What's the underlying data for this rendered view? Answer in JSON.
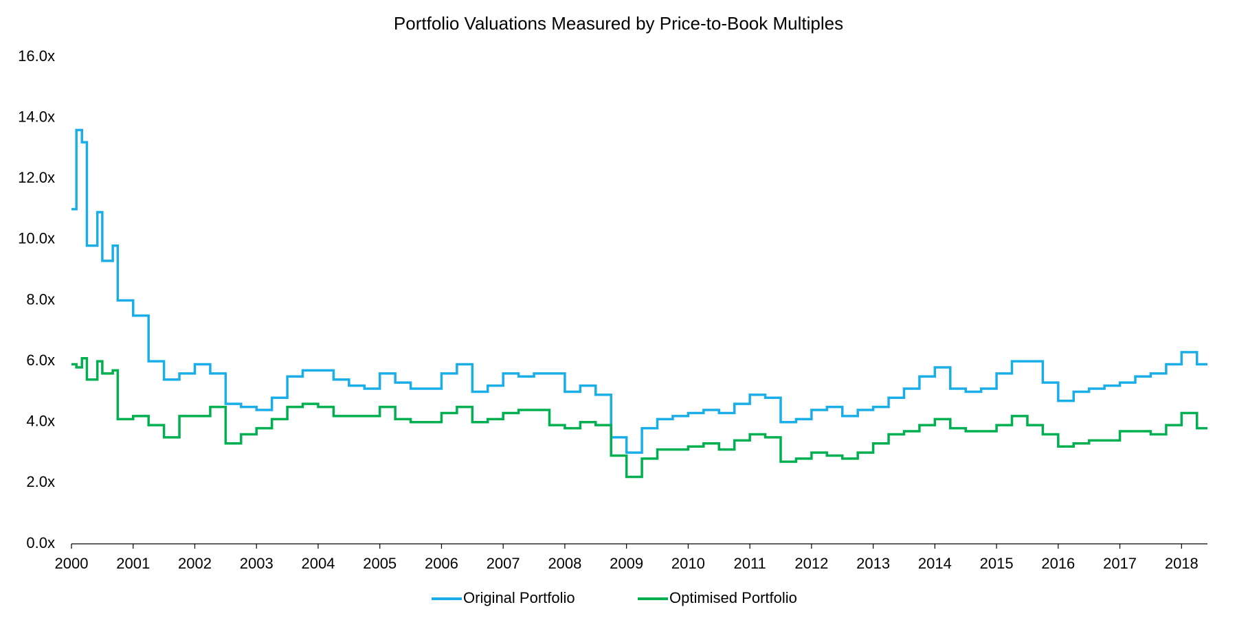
{
  "chart_data": {
    "type": "line",
    "step": true,
    "title": "Portfolio Valuations Measured by Price-to-Book Multiples",
    "x": [
      2000,
      2000.08,
      2000.17,
      2000.25,
      2000.42,
      2000.5,
      2000.67,
      2000.75,
      2001,
      2001.25,
      2001.5,
      2001.75,
      2002,
      2002.25,
      2002.5,
      2002.75,
      2003,
      2003.25,
      2003.5,
      2003.75,
      2004,
      2004.25,
      2004.5,
      2004.75,
      2005,
      2005.25,
      2005.5,
      2005.75,
      2006,
      2006.25,
      2006.5,
      2006.75,
      2007,
      2007.25,
      2007.5,
      2007.75,
      2008,
      2008.25,
      2008.5,
      2008.75,
      2009,
      2009.25,
      2009.5,
      2009.75,
      2010,
      2010.25,
      2010.5,
      2010.75,
      2011,
      2011.25,
      2011.5,
      2011.75,
      2012,
      2012.25,
      2012.5,
      2012.75,
      2013,
      2013.25,
      2013.5,
      2013.75,
      2014,
      2014.25,
      2014.5,
      2014.75,
      2015,
      2015.25,
      2015.5,
      2015.75,
      2016,
      2016.25,
      2016.5,
      2016.75,
      2017,
      2017.25,
      2017.5,
      2017.75,
      2018,
      2018.25
    ],
    "series": [
      {
        "name": "Original Portfolio",
        "color": "#1aaee8",
        "values": [
          11.0,
          13.6,
          13.2,
          9.8,
          10.9,
          9.3,
          9.8,
          8.0,
          7.5,
          6.0,
          5.4,
          5.6,
          5.9,
          5.6,
          4.6,
          4.5,
          4.4,
          4.8,
          5.5,
          5.7,
          5.7,
          5.4,
          5.2,
          5.1,
          5.6,
          5.3,
          5.1,
          5.1,
          5.6,
          5.9,
          5.0,
          5.2,
          5.6,
          5.5,
          5.6,
          5.6,
          5.0,
          5.2,
          4.9,
          3.5,
          3.0,
          3.8,
          4.1,
          4.2,
          4.3,
          4.4,
          4.3,
          4.6,
          4.9,
          4.8,
          4.0,
          4.1,
          4.4,
          4.5,
          4.2,
          4.4,
          4.5,
          4.8,
          5.1,
          5.5,
          5.8,
          5.1,
          5.0,
          5.1,
          5.6,
          6.0,
          6.0,
          5.3,
          4.7,
          5.0,
          5.1,
          5.2,
          5.3,
          5.5,
          5.6,
          5.9,
          6.3,
          5.9
        ]
      },
      {
        "name": "Optimised Portfolio",
        "color": "#00b050",
        "values": [
          5.9,
          5.8,
          6.1,
          5.4,
          6.0,
          5.6,
          5.7,
          4.1,
          4.2,
          3.9,
          3.5,
          4.2,
          4.2,
          4.5,
          3.3,
          3.6,
          3.8,
          4.1,
          4.5,
          4.6,
          4.5,
          4.2,
          4.2,
          4.2,
          4.5,
          4.1,
          4.0,
          4.0,
          4.3,
          4.5,
          4.0,
          4.1,
          4.3,
          4.4,
          4.4,
          3.9,
          3.8,
          4.0,
          3.9,
          2.9,
          2.2,
          2.8,
          3.1,
          3.1,
          3.2,
          3.3,
          3.1,
          3.4,
          3.6,
          3.5,
          2.7,
          2.8,
          3.0,
          2.9,
          2.8,
          3.0,
          3.3,
          3.6,
          3.7,
          3.9,
          4.1,
          3.8,
          3.7,
          3.7,
          3.9,
          4.2,
          3.9,
          3.6,
          3.2,
          3.3,
          3.4,
          3.4,
          3.7,
          3.7,
          3.6,
          3.9,
          4.3,
          3.8
        ]
      }
    ],
    "xlim": [
      2000,
      2018.42
    ],
    "xticks": [
      2000,
      2001,
      2002,
      2003,
      2004,
      2005,
      2006,
      2007,
      2008,
      2009,
      2010,
      2011,
      2012,
      2013,
      2014,
      2015,
      2016,
      2017,
      2018
    ],
    "ylim": [
      0,
      16
    ],
    "yticks": [
      {
        "value": 0,
        "label": "0.0x"
      },
      {
        "value": 2,
        "label": "2.0x"
      },
      {
        "value": 4,
        "label": "4.0x"
      },
      {
        "value": 6,
        "label": "6.0x"
      },
      {
        "value": 8,
        "label": "8.0x"
      },
      {
        "value": 10,
        "label": "10.0x"
      },
      {
        "value": 12,
        "label": "12.0x"
      },
      {
        "value": 14,
        "label": "14.0x"
      },
      {
        "value": 16,
        "label": "16.0x"
      }
    ],
    "grid": false,
    "legend": "bottom"
  }
}
